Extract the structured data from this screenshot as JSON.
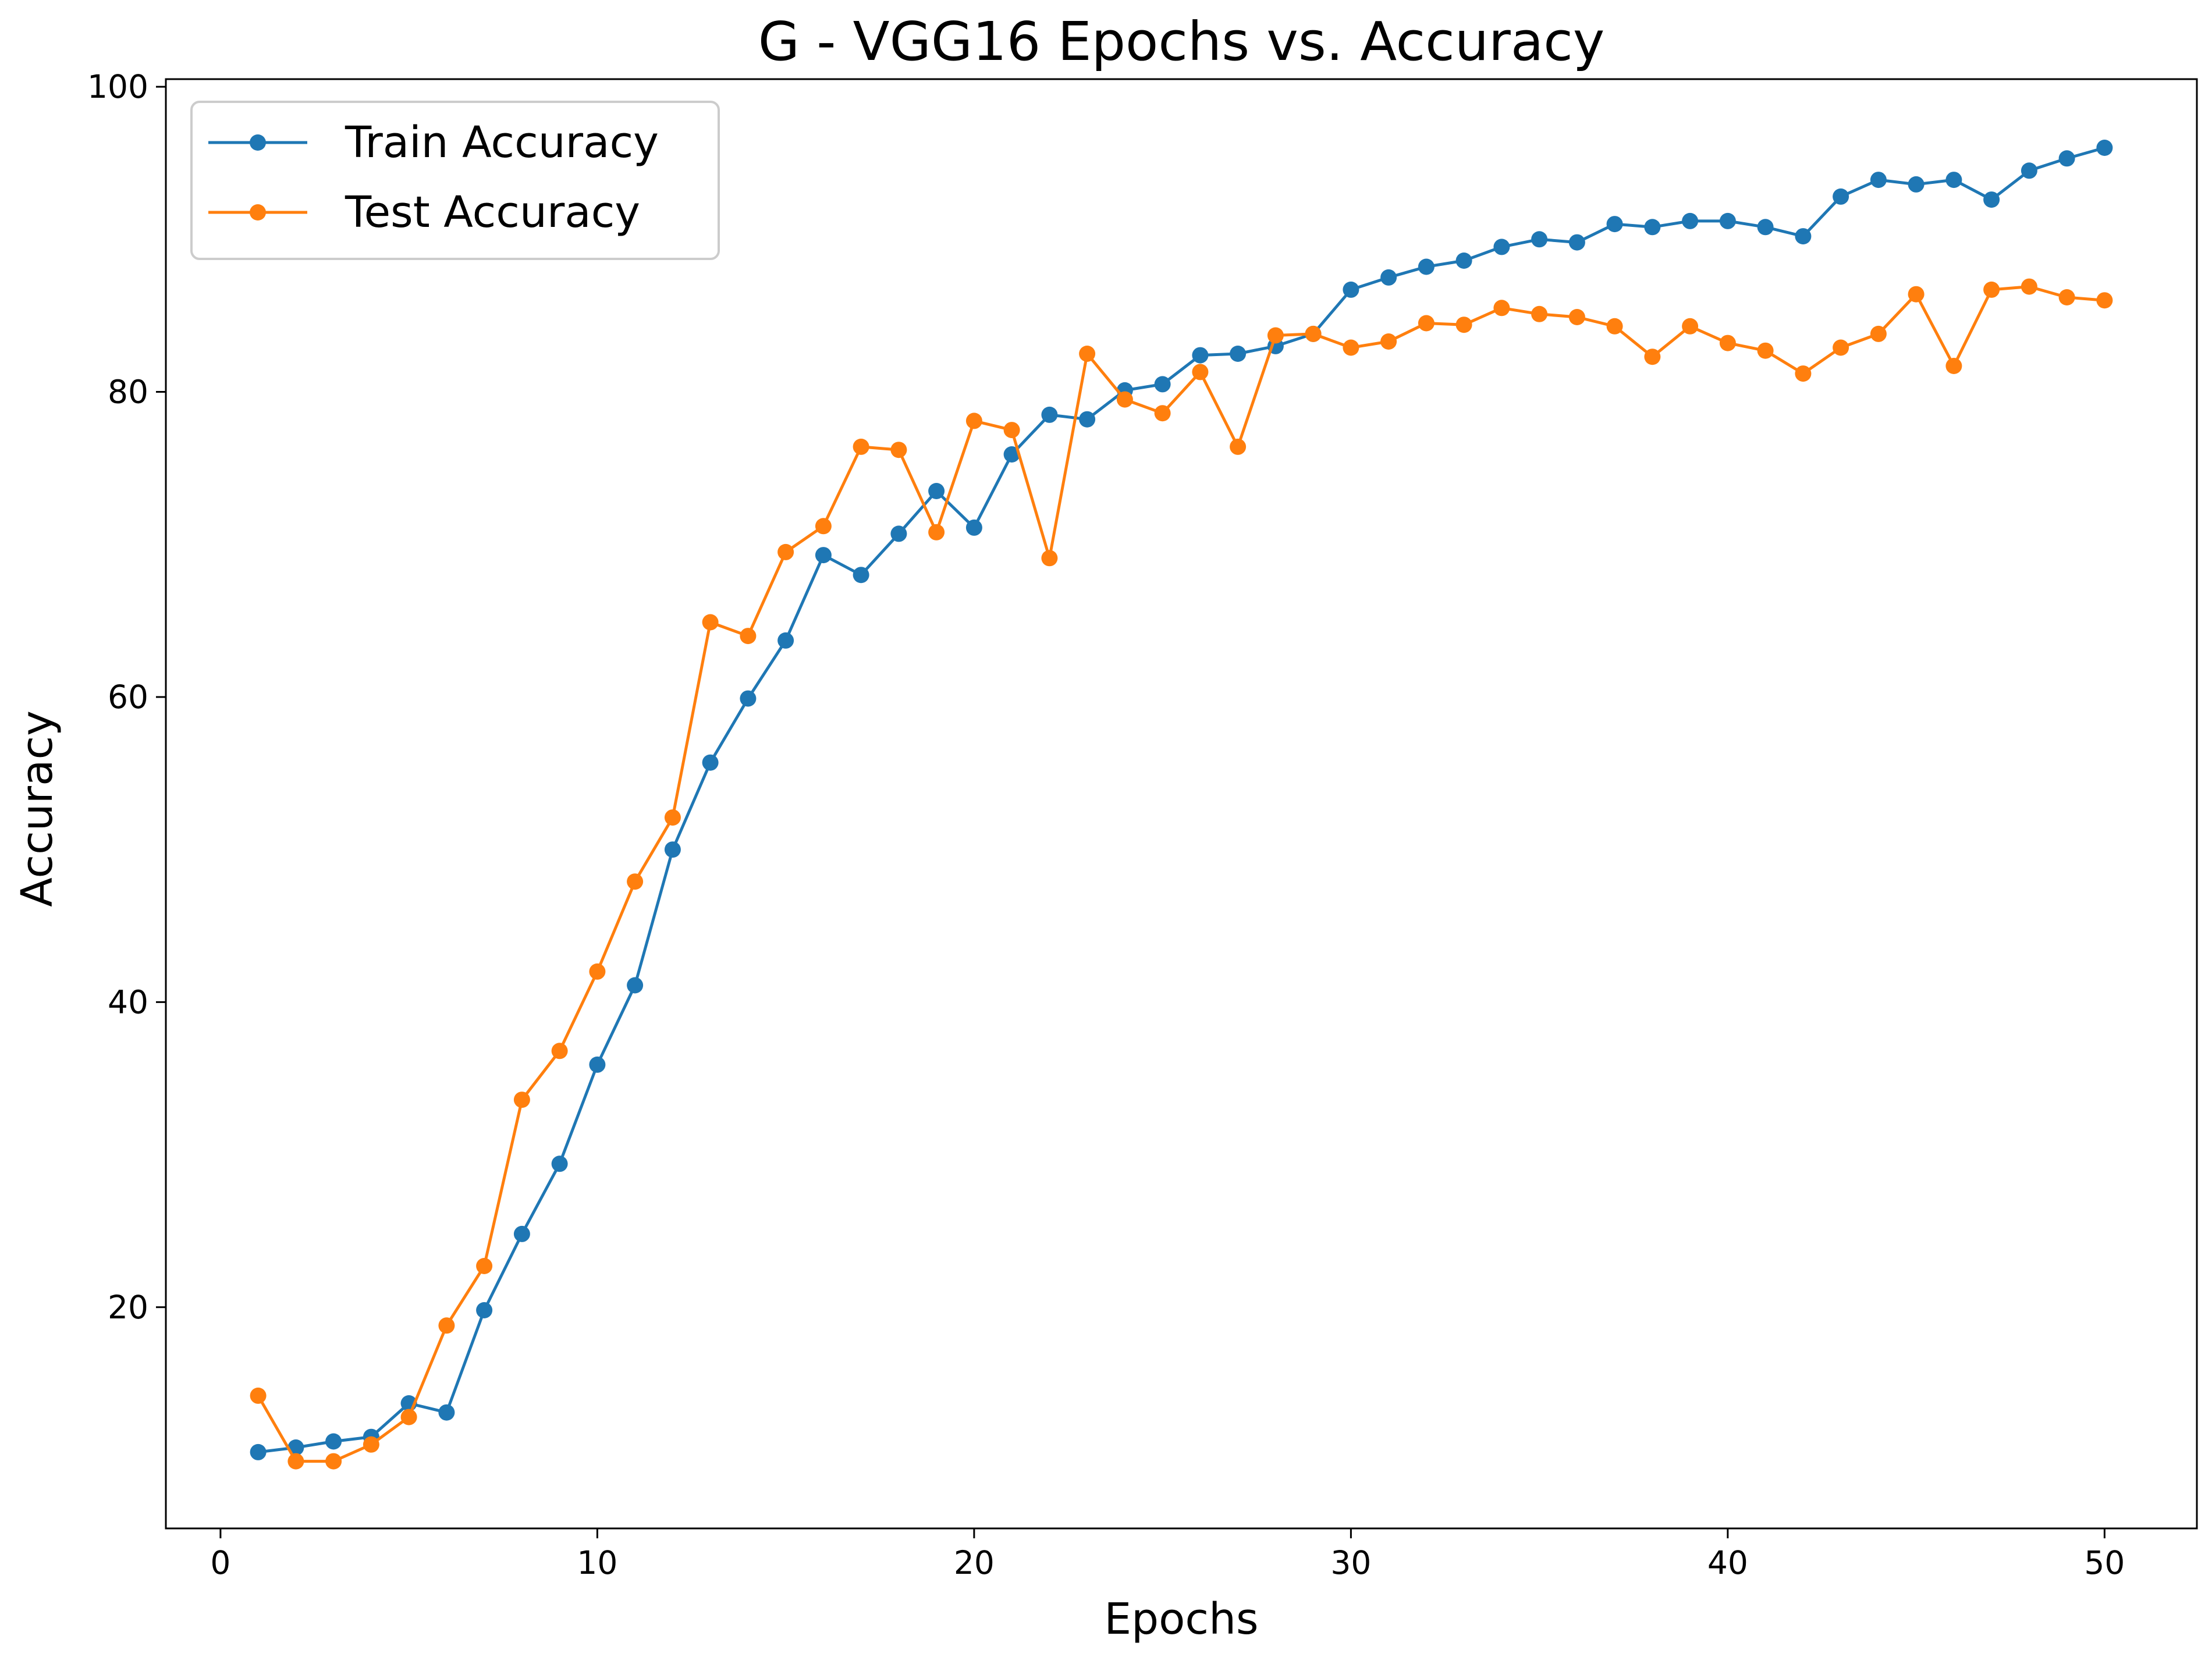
{
  "chart_data": {
    "type": "line",
    "title": "G - VGG16 Epochs vs. Accuracy",
    "xlabel": "Epochs",
    "ylabel": "Accuracy",
    "xlim": [
      -1.45,
      52.45
    ],
    "ylim": [
      5.5,
      100.5
    ],
    "xticks": [
      0,
      10,
      20,
      30,
      40,
      50
    ],
    "yticks": [
      20,
      40,
      60,
      80,
      100
    ],
    "grid": false,
    "legend_position": "top-left",
    "x": [
      1,
      2,
      3,
      4,
      5,
      6,
      7,
      8,
      9,
      10,
      11,
      12,
      13,
      14,
      15,
      16,
      17,
      18,
      19,
      20,
      21,
      22,
      23,
      24,
      25,
      26,
      27,
      28,
      29,
      30,
      31,
      32,
      33,
      34,
      35,
      36,
      37,
      38,
      39,
      40,
      41,
      42,
      43,
      44,
      45,
      46,
      47,
      48,
      49,
      50
    ],
    "series": [
      {
        "name": "Train Accuracy",
        "color": "#1f77b4",
        "values": [
          10.5,
          10.8,
          11.2,
          11.5,
          13.7,
          13.1,
          19.8,
          24.8,
          29.4,
          35.9,
          41.1,
          50.0,
          55.7,
          59.9,
          63.7,
          69.3,
          68.0,
          70.7,
          73.5,
          71.1,
          75.9,
          78.5,
          78.2,
          80.1,
          80.5,
          82.4,
          82.5,
          83.0,
          83.8,
          86.7,
          87.5,
          88.2,
          88.6,
          89.5,
          90.0,
          89.8,
          91.0,
          90.8,
          91.2,
          91.2,
          90.8,
          90.2,
          92.8,
          93.9,
          93.6,
          93.9,
          92.6,
          94.5,
          95.3,
          96.0
        ]
      },
      {
        "name": "Test Accuracy",
        "color": "#ff7f0e",
        "values": [
          14.2,
          9.9,
          9.9,
          11.0,
          12.8,
          18.8,
          22.7,
          33.6,
          36.8,
          42.0,
          47.9,
          52.1,
          64.9,
          64.0,
          69.5,
          71.2,
          76.4,
          76.2,
          70.8,
          78.1,
          77.5,
          69.1,
          82.5,
          79.5,
          78.6,
          81.3,
          76.4,
          83.7,
          83.8,
          82.9,
          83.3,
          84.5,
          84.4,
          85.5,
          85.1,
          84.9,
          84.3,
          82.3,
          84.3,
          83.2,
          82.7,
          81.2,
          82.9,
          83.8,
          86.4,
          81.7,
          86.7,
          86.9,
          86.2,
          86.0
        ]
      }
    ]
  }
}
